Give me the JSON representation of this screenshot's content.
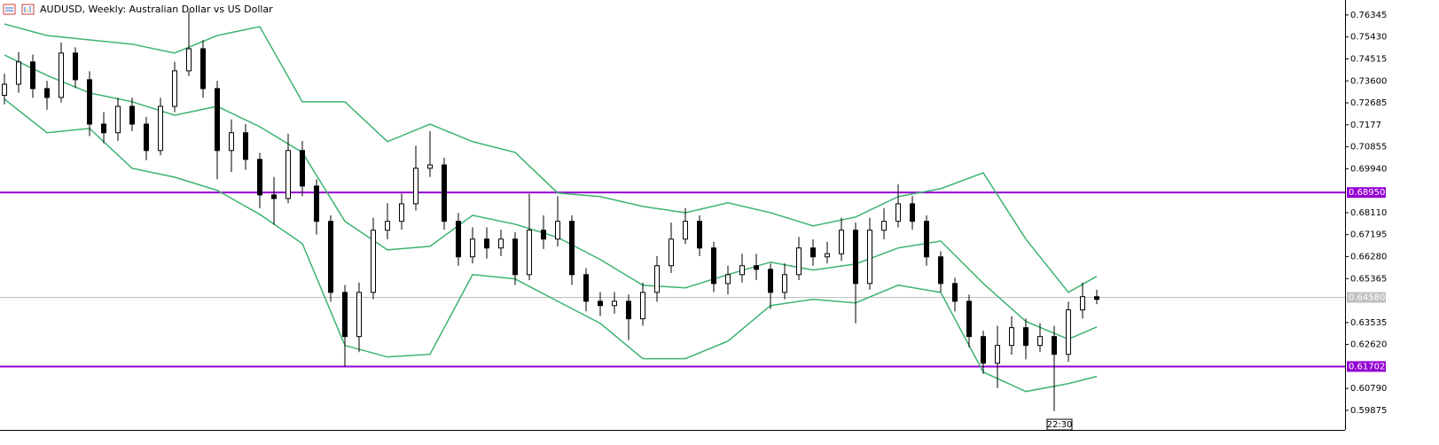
{
  "chart_data": {
    "type": "candlestick",
    "title": "AUDUSD, Weekly:  Australian Dollar vs US Dollar",
    "ylim": [
      0.5906,
      0.7697
    ],
    "yticks": [
      0.76345,
      {
        "value": 0.7543,
        "label": "0.75430"
      },
      0.74515,
      {
        "value": 0.736,
        "label": "0.73600"
      },
      0.72685,
      0.7177,
      0.70855,
      {
        "value": 0.6994,
        "label": "0.69940"
      },
      {
        "value": 0.6811,
        "label": "0.68110"
      },
      0.67195,
      {
        "value": 0.6628,
        "label": "0.66280"
      },
      0.65365,
      0.63535,
      {
        "value": 0.6262,
        "label": "0.62620"
      },
      {
        "value": 0.6079,
        "label": "0.60790"
      },
      0.59875
    ],
    "candle_up_color": "#ffffff",
    "candle_down_color": "#000000",
    "open": [
      0.73,
      0.7346,
      0.7439,
      0.7328,
      0.7291,
      0.7476,
      0.7365,
      0.718,
      0.7144,
      0.7254,
      0.718,
      0.707,
      0.7254,
      0.7402,
      0.7494,
      0.7328,
      0.707,
      0.7144,
      0.7033,
      0.6885,
      0.687,
      0.707,
      0.6922,
      0.6775,
      0.6479,
      0.6295,
      0.6479,
      0.6738,
      0.6775,
      0.6848,
      0.6996,
      0.701,
      0.6775,
      0.6627,
      0.6701,
      0.6664,
      0.6701,
      0.6553,
      0.6738,
      0.6701,
      0.6775,
      0.6553,
      0.6442,
      0.6424,
      0.6442,
      0.6369,
      0.6479,
      0.659,
      0.6701,
      0.6775,
      0.6664,
      0.6516,
      0.6553,
      0.659,
      0.6575,
      0.6479,
      0.6553,
      0.6664,
      0.6627,
      0.664,
      0.6738,
      0.6516,
      0.6738,
      0.6775,
      0.6848,
      0.6775,
      0.6627,
      0.6516,
      0.6442,
      0.6295,
      0.6184,
      0.6258,
      0.6332,
      0.6258,
      0.6295,
      0.6221,
      0.6406,
      0.6461
    ],
    "high": [
      0.739,
      0.748,
      0.747,
      0.736,
      0.752,
      0.75,
      0.74,
      0.723,
      0.729,
      0.729,
      0.721,
      0.729,
      0.744,
      0.765,
      0.753,
      0.736,
      0.72,
      0.718,
      0.706,
      0.696,
      0.714,
      0.711,
      0.695,
      0.68,
      0.651,
      0.652,
      0.679,
      0.685,
      0.689,
      0.709,
      0.715,
      0.704,
      0.681,
      0.675,
      0.675,
      0.674,
      0.673,
      0.689,
      0.68,
      0.688,
      0.68,
      0.658,
      0.648,
      0.648,
      0.647,
      0.652,
      0.663,
      0.677,
      0.683,
      0.68,
      0.669,
      0.659,
      0.664,
      0.664,
      0.66,
      0.66,
      0.671,
      0.67,
      0.669,
      0.679,
      0.677,
      0.679,
      0.683,
      0.693,
      0.688,
      0.68,
      0.665,
      0.654,
      0.647,
      0.632,
      0.634,
      0.638,
      0.637,
      0.635,
      0.634,
      0.644,
      0.652,
      0.649
    ],
    "low": [
      0.7262,
      0.731,
      0.729,
      0.724,
      0.727,
      0.733,
      0.713,
      0.71,
      0.711,
      0.715,
      0.703,
      0.705,
      0.723,
      0.738,
      0.729,
      0.695,
      0.698,
      0.699,
      0.683,
      0.676,
      0.685,
      0.688,
      0.672,
      0.644,
      0.617,
      0.623,
      0.645,
      0.67,
      0.674,
      0.682,
      0.696,
      0.674,
      0.659,
      0.66,
      0.662,
      0.663,
      0.651,
      0.653,
      0.666,
      0.667,
      0.651,
      0.64,
      0.638,
      0.639,
      0.628,
      0.634,
      0.644,
      0.656,
      0.668,
      0.663,
      0.648,
      0.647,
      0.652,
      0.653,
      0.641,
      0.645,
      0.653,
      0.659,
      0.66,
      0.661,
      0.635,
      0.649,
      0.67,
      0.675,
      0.674,
      0.659,
      0.648,
      0.64,
      0.625,
      0.614,
      0.608,
      0.622,
      0.62,
      0.623,
      0.5985,
      0.619,
      0.637,
      0.643
    ],
    "close": [
      0.7346,
      0.7439,
      0.7328,
      0.7291,
      0.7476,
      0.7365,
      0.718,
      0.7144,
      0.7254,
      0.718,
      0.707,
      0.7254,
      0.7402,
      0.7494,
      0.7328,
      0.707,
      0.7144,
      0.7033,
      0.6885,
      0.687,
      0.707,
      0.6922,
      0.6775,
      0.6479,
      0.6295,
      0.6479,
      0.6738,
      0.6775,
      0.6848,
      0.6996,
      0.701,
      0.6775,
      0.6627,
      0.6701,
      0.6664,
      0.6701,
      0.6553,
      0.6738,
      0.6701,
      0.6775,
      0.6553,
      0.6442,
      0.6424,
      0.6442,
      0.6369,
      0.6479,
      0.659,
      0.6701,
      0.6775,
      0.6664,
      0.6516,
      0.6553,
      0.659,
      0.6575,
      0.6479,
      0.6553,
      0.6664,
      0.6627,
      0.664,
      0.6738,
      0.6516,
      0.6738,
      0.6775,
      0.6848,
      0.6775,
      0.6627,
      0.6516,
      0.6442,
      0.6295,
      0.6184,
      0.6258,
      0.6332,
      0.6258,
      0.6295,
      0.6221,
      0.6406,
      0.6461,
      0.645
    ],
    "bands": {
      "color": "#3cb371",
      "x": [
        0,
        3,
        6,
        9,
        12,
        15,
        18,
        21,
        24,
        27,
        30,
        33,
        36,
        39,
        42,
        45,
        48,
        51,
        54,
        57,
        60,
        63,
        66,
        69,
        72,
        75,
        77
      ],
      "upper": [
        0.7597,
        0.7549,
        0.7531,
        0.7513,
        0.7476,
        0.7549,
        0.7586,
        0.7273,
        0.7273,
        0.7107,
        0.718,
        0.7107,
        0.7062,
        0.6893,
        0.6878,
        0.6837,
        0.6811,
        0.6852,
        0.6811,
        0.6756,
        0.6793,
        0.6878,
        0.6911,
        0.6977,
        0.6701,
        0.6479,
        0.6546
      ],
      "middle": [
        0.7468,
        0.7383,
        0.731,
        0.7273,
        0.7217,
        0.7254,
        0.7169,
        0.7062,
        0.6775,
        0.6656,
        0.6671,
        0.68,
        0.6763,
        0.6708,
        0.6616,
        0.6509,
        0.6498,
        0.6553,
        0.6605,
        0.6572,
        0.6597,
        0.6664,
        0.6693,
        0.6516,
        0.6358,
        0.6284,
        0.6335
      ],
      "lower": [
        0.7284,
        0.7144,
        0.7162,
        0.6996,
        0.6959,
        0.6904,
        0.6804,
        0.6682,
        0.6258,
        0.621,
        0.6221,
        0.6553,
        0.6535,
        0.6442,
        0.635,
        0.6203,
        0.6203,
        0.6276,
        0.6424,
        0.645,
        0.6435,
        0.6509,
        0.6479,
        0.6147,
        0.6066,
        0.6099,
        0.6129
      ]
    },
    "levels": [
      {
        "value": 0.6895,
        "label": "0.68950",
        "color": "#9400d3"
      },
      {
        "value": 0.61702,
        "label": "0.61702",
        "color": "#9400d3"
      }
    ],
    "price_line": {
      "value": 0.6458,
      "label": "0.64580",
      "color": "#c0c0c0"
    },
    "time_label": "22:30"
  }
}
